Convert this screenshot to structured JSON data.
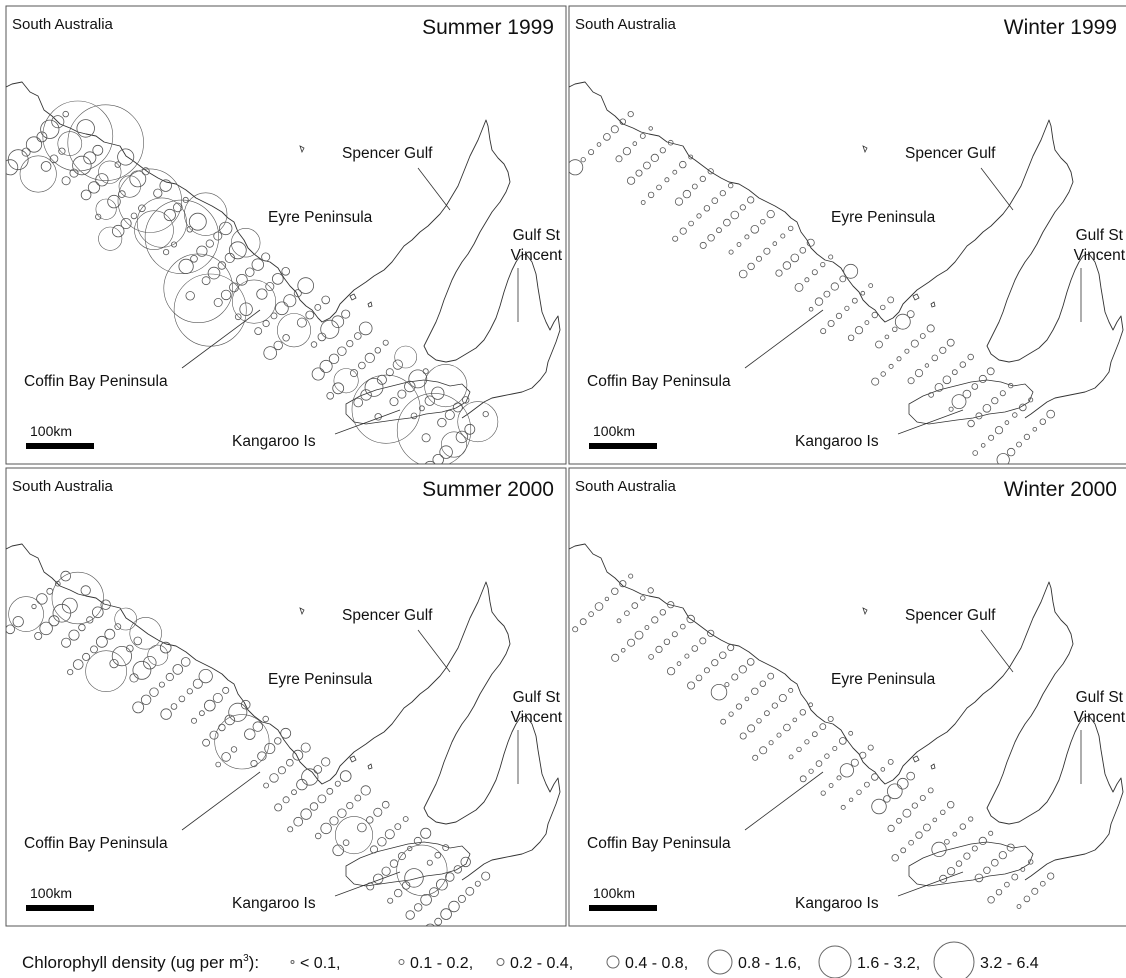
{
  "panels": [
    {
      "id": "summer-1999",
      "region": "South Australia",
      "season": "Summer 1999",
      "labels": {
        "spencer": "Spencer Gulf",
        "eyre": "Eyre Peninsula",
        "gulf_vincent": [
          "Gulf St",
          "Vincent"
        ],
        "coffin": "Coffin Bay Peninsula",
        "kangaroo": "Kangaroo Is"
      },
      "scale_bar": "100km",
      "density_profile": "high-west"
    },
    {
      "id": "winter-1999",
      "region": "South Australia",
      "season": "Winter 1999",
      "labels": {
        "spencer": "Spencer Gulf",
        "eyre": "Eyre Peninsula",
        "gulf_vincent": [
          "Gulf St",
          "Vincent"
        ],
        "coffin": "Coffin Bay Peninsula",
        "kangaroo": "Kangaroo Is"
      },
      "scale_bar": "100km",
      "density_profile": "low"
    },
    {
      "id": "summer-2000",
      "region": "South Australia",
      "season": "Summer 2000",
      "labels": {
        "spencer": "Spencer Gulf",
        "eyre": "Eyre Peninsula",
        "gulf_vincent": [
          "Gulf St",
          "Vincent"
        ],
        "coffin": "Coffin Bay Peninsula",
        "kangaroo": "Kangaroo Is"
      },
      "scale_bar": "100km",
      "density_profile": "medium-west"
    },
    {
      "id": "winter-2000",
      "region": "South Australia",
      "season": "Winter 2000",
      "labels": {
        "spencer": "Spencer Gulf",
        "eyre": "Eyre Peninsula",
        "gulf_vincent": [
          "Gulf St",
          "Vincent"
        ],
        "coffin": "Coffin Bay Peninsula",
        "kangaroo": "Kangaroo Is"
      },
      "scale_bar": "100km",
      "density_profile": "low"
    }
  ],
  "legend": {
    "title": "Chlorophyll density (ug per m",
    "title_sup": "3",
    "title_end": "):",
    "classes": [
      "< 0.1,",
      "0.1 - 0.2,",
      "0.2 - 0.4,",
      "0.4 - 0.8,",
      "0.8 - 1.6,",
      "1.6 - 3.2,",
      "3.2  - 6.4"
    ]
  },
  "colors": {
    "coastline": "#333333",
    "station_circle": "#555555",
    "panel_border": "#555555",
    "background": "#ffffff"
  }
}
